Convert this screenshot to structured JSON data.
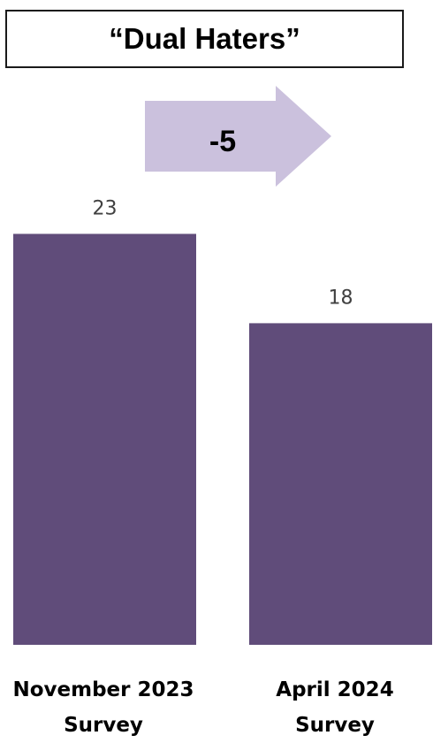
{
  "chart_data": {
    "type": "bar",
    "title": "“Dual Haters”",
    "categories": [
      [
        "November 2023",
        "Survey"
      ],
      [
        "April 2024",
        "Survey"
      ]
    ],
    "values": [
      23,
      18
    ],
    "change_label": "-5",
    "colors": {
      "bar": "#604c7a",
      "arrow": "#cbc1dd"
    }
  }
}
